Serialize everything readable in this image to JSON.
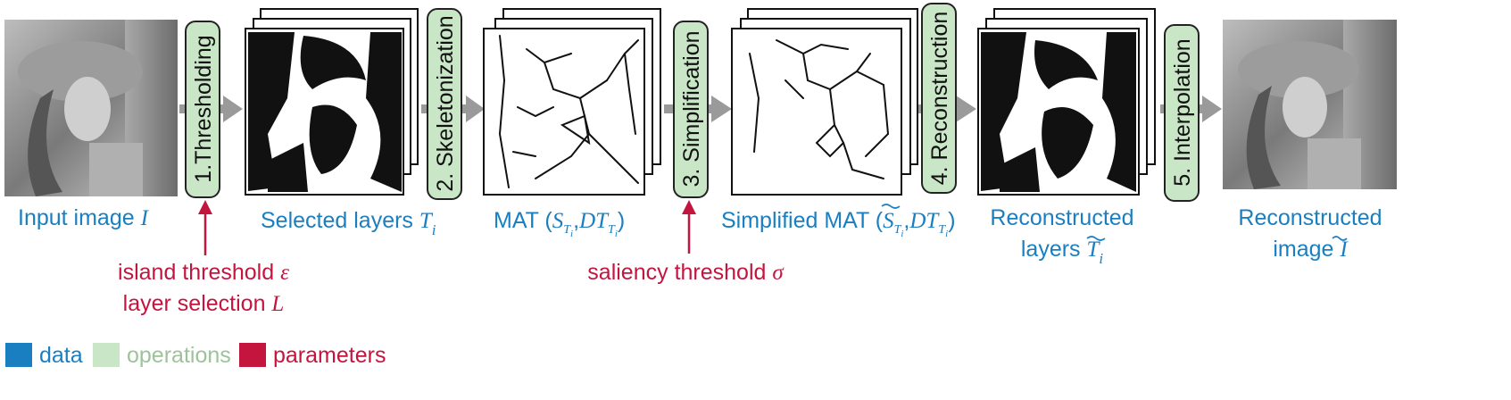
{
  "stages": {
    "input": {
      "label": "Input image ",
      "sym": "I"
    },
    "selected": {
      "label": "Selected layers ",
      "sym": "T",
      "sub": "i"
    },
    "mat": {
      "label": "MAT (",
      "s": "S",
      "t_sub": "T",
      "i_sub": "i",
      "comma": ",",
      "dt": "DT",
      "close": ")"
    },
    "simplified": {
      "label": "Simplified MAT (",
      "s": "S",
      "comma": ",",
      "dt": "DT",
      "close": ")"
    },
    "reconstructed_layers": {
      "line1": "Reconstructed",
      "line2": "layers ",
      "sym": "T",
      "sub": "i"
    },
    "reconstructed_image": {
      "line1": "Reconstructed",
      "line2": "image ",
      "sym": "I"
    }
  },
  "operations": {
    "thresholding": "1.Thresholding",
    "skeletonization": "2. Skeletonization",
    "simplification": "3. Simplification",
    "reconstruction": "4. Reconstruction",
    "interpolation": "5. Interpolation"
  },
  "parameters": {
    "island": "island threshold ",
    "island_sym": "ε",
    "layer": "layer selection ",
    "layer_sym": "L",
    "saliency": "saliency threshold ",
    "saliency_sym": "σ"
  },
  "legend": {
    "data": "data",
    "operations": "operations",
    "parameters": "parameters"
  },
  "colors": {
    "data": "#1a7fc0",
    "operations": "#c9e6c6",
    "parameters": "#c4153f",
    "arrow": "#9a9a9a"
  },
  "icons": [
    "input-photo",
    "layer-stack",
    "skeleton-stack",
    "reconstructed-stack",
    "output-photo"
  ]
}
